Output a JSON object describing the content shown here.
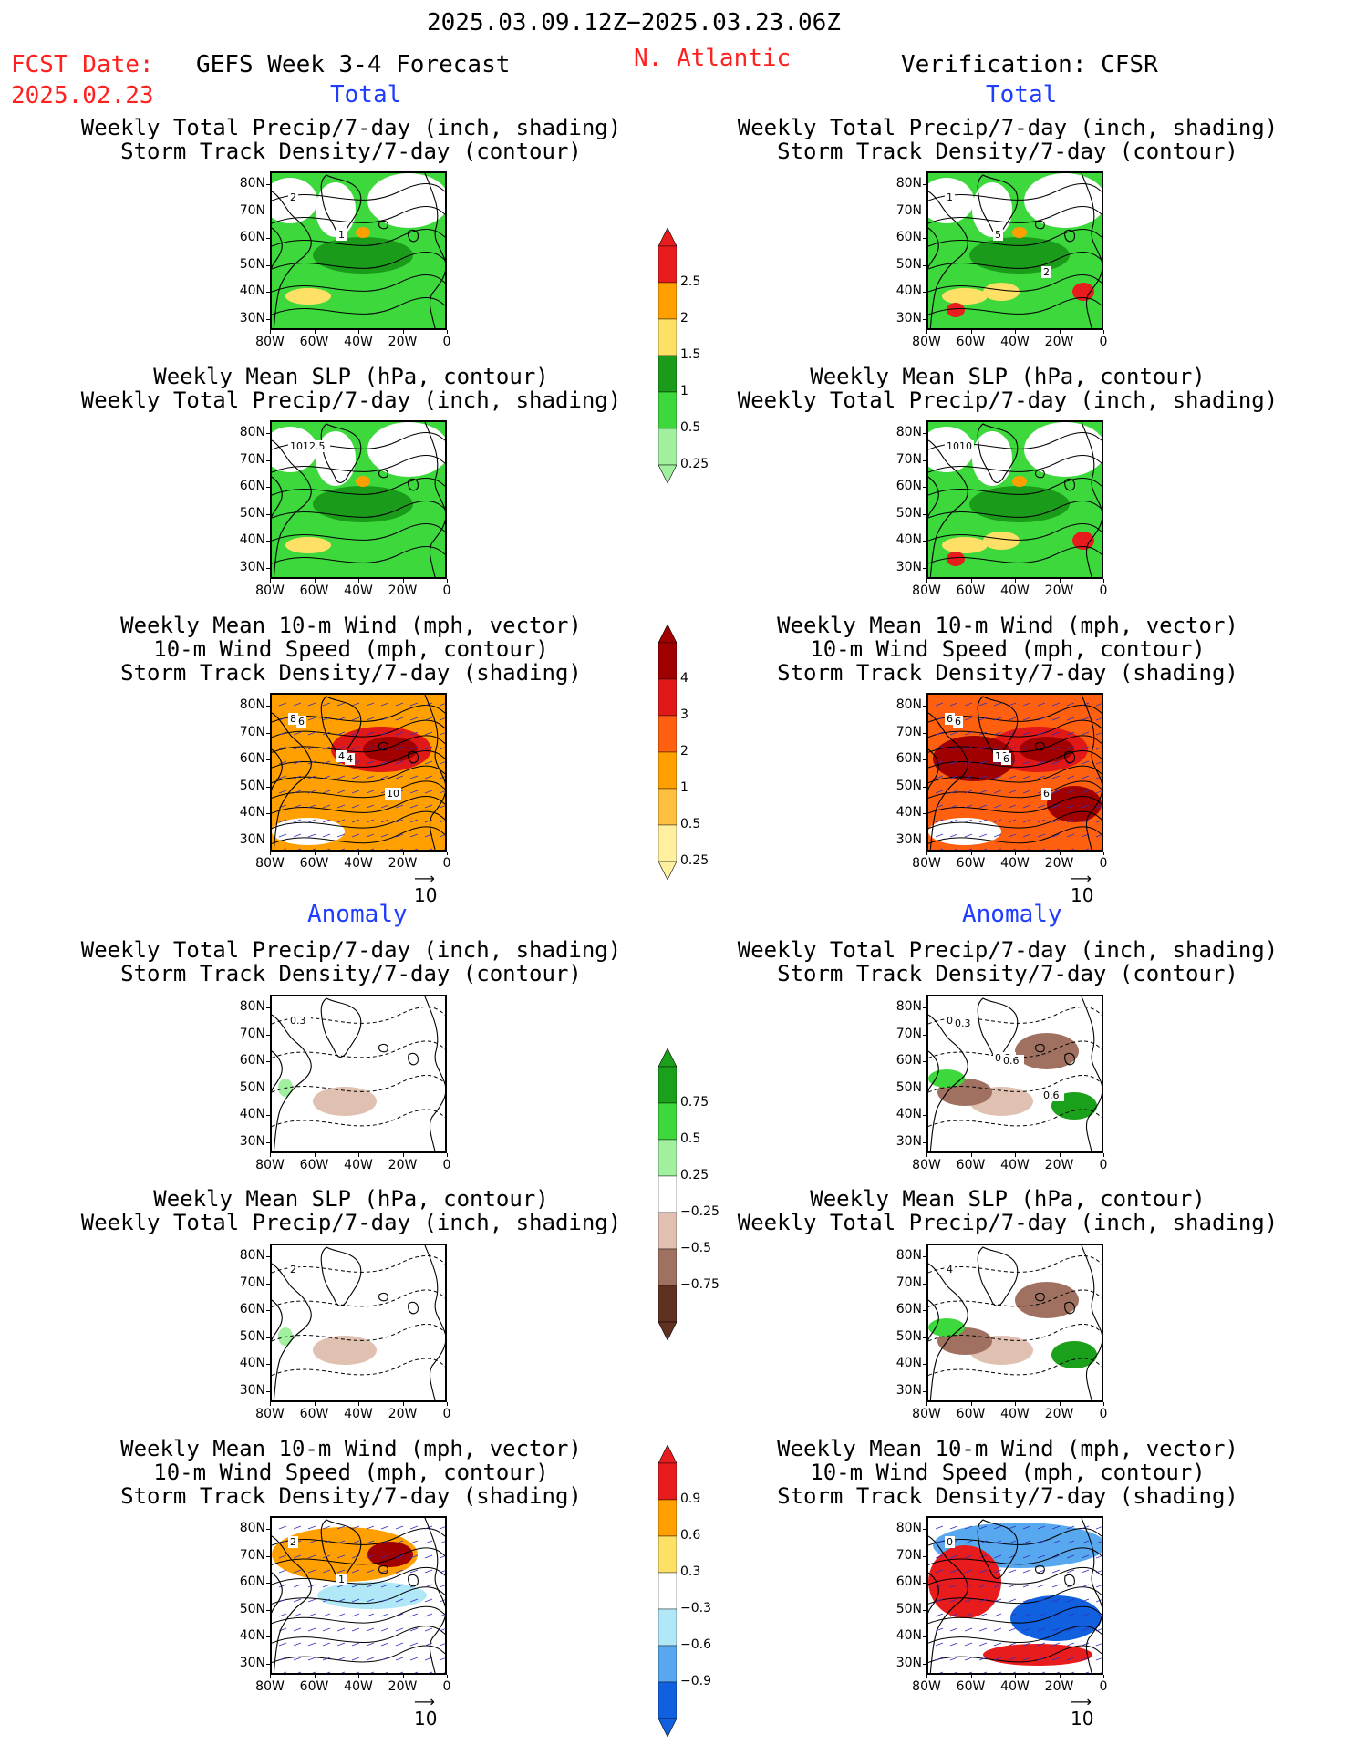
{
  "header": {
    "period": "2025.03.09.12Z−2025.03.23.06Z",
    "fcst_label": "FCST Date:",
    "fcst_date": "2025.02.23",
    "model": "GEFS Week 3-4 Forecast",
    "region": "N. Atlantic",
    "verification": "Verification: CFSR"
  },
  "sections": {
    "total": "Total",
    "anomaly": "Anomaly"
  },
  "panel_titles": {
    "precip_storm": "Weekly Total Precip/7-day (inch, shading)\nStorm Track Density/7-day (contour)",
    "slp_precip": "Weekly Mean SLP (hPa, contour)\nWeekly Total Precip/7-day (inch, shading)",
    "wind_storm": "Weekly Mean 10-m Wind (mph, vector)\n10-m Wind Speed (mph, contour)\nStorm Track Density/7-day (shading)"
  },
  "axes": {
    "lat": [
      "80N",
      "70N",
      "60N",
      "50N",
      "40N",
      "30N"
    ],
    "lon": [
      "80W",
      "60W",
      "40W",
      "20W",
      "0"
    ]
  },
  "vector_ref": "10",
  "colorbars": [
    {
      "labels": [
        "2.5",
        "2",
        "1.5",
        "1",
        "0.5",
        "0.25"
      ],
      "colors": [
        "#e81c1c",
        "#ffa000",
        "#ffe066",
        "#1a9c1a",
        "#3cd83c",
        "#a0f0a0"
      ]
    },
    {
      "labels": [
        "4",
        "3",
        "2",
        "1",
        "0.5",
        "0.25"
      ],
      "colors": [
        "#a00000",
        "#e01818",
        "#ff6010",
        "#ffa000",
        "#ffc040",
        "#fff0a0"
      ]
    },
    {
      "labels": [
        "0.75",
        "0.5",
        "0.25",
        "−0.25",
        "−0.5",
        "−0.75"
      ],
      "colors": [
        "#1aa01a",
        "#3cd83c",
        "#a0f0a0",
        "#ffffff",
        "#e0c0b0",
        "#a07060",
        "#603020"
      ]
    },
    {
      "labels": [
        "0.9",
        "0.6",
        "0.3",
        "−0.3",
        "−0.6",
        "−0.9"
      ],
      "colors": [
        "#e81c1c",
        "#ffa000",
        "#ffe066",
        "#ffffff",
        "#b0e8f8",
        "#58a8f0",
        "#1060e0"
      ]
    }
  ],
  "contour_labels": {
    "fcst_total_precip": [
      "2",
      "1"
    ],
    "ver_total_precip": [
      "1",
      "5",
      "2"
    ],
    "fcst_total_slp": [
      "1012.5"
    ],
    "ver_total_slp": [
      "1010"
    ],
    "fcst_total_wind": [
      "8",
      "4",
      "10",
      "6",
      "4"
    ],
    "ver_total_wind": [
      "6",
      "10",
      "6",
      "6",
      "6"
    ],
    "fcst_anom_precip": [
      "0.3"
    ],
    "ver_anom_precip": [
      "0.6",
      "0.3",
      "0.6",
      "0.3",
      "0.6"
    ],
    "fcst_anom_slp": [
      "2"
    ],
    "ver_anom_slp": [
      "4"
    ],
    "fcst_anom_wind": [
      "2",
      "1"
    ],
    "ver_anom_wind": [
      "0"
    ]
  },
  "map_fill": {
    "fcst_total_precip": "#3cd83c",
    "ver_total_precip": "#3cd83c",
    "fcst_total_slp": "#3cd83c",
    "ver_total_slp": "#3cd83c",
    "fcst_total_wind": "#ffa000",
    "ver_total_wind": "#ff6010"
  }
}
